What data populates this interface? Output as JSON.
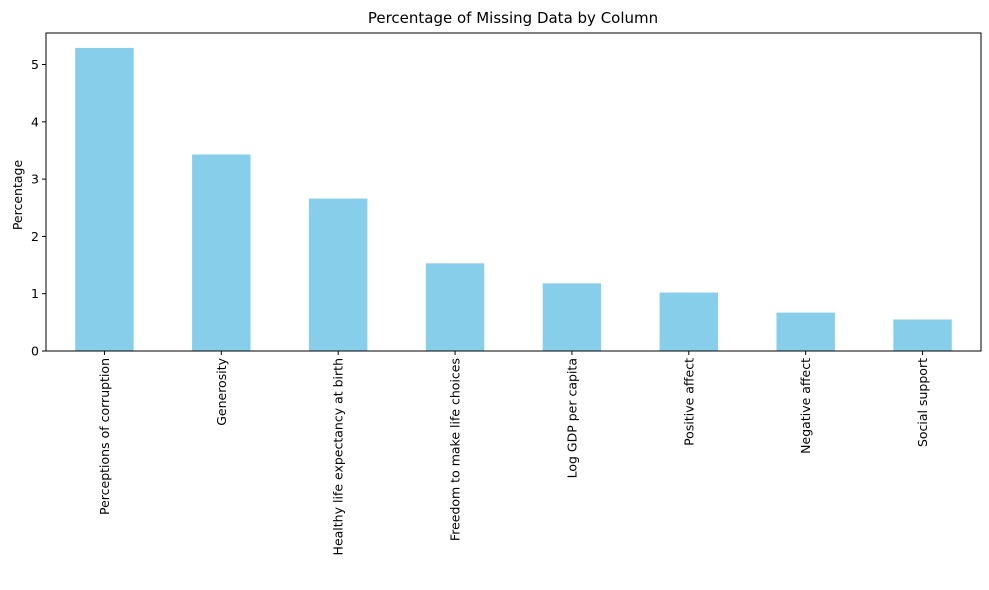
{
  "chart_data": {
    "type": "bar",
    "title": "Percentage of Missing Data by Column",
    "xlabel": "",
    "ylabel": "Percentage",
    "categories": [
      "Perceptions of corruption",
      "Generosity",
      "Healthy life expectancy at birth",
      "Freedom to make life choices",
      "Log GDP per capita",
      "Positive affect",
      "Negative affect",
      "Social support"
    ],
    "values": [
      5.29,
      3.43,
      2.66,
      1.53,
      1.18,
      1.02,
      0.67,
      0.55
    ],
    "ylim": [
      0,
      5.55
    ],
    "yticks": [
      0,
      1,
      2,
      3,
      4,
      5
    ],
    "grid": false,
    "bar_color": "#87ceeb"
  }
}
